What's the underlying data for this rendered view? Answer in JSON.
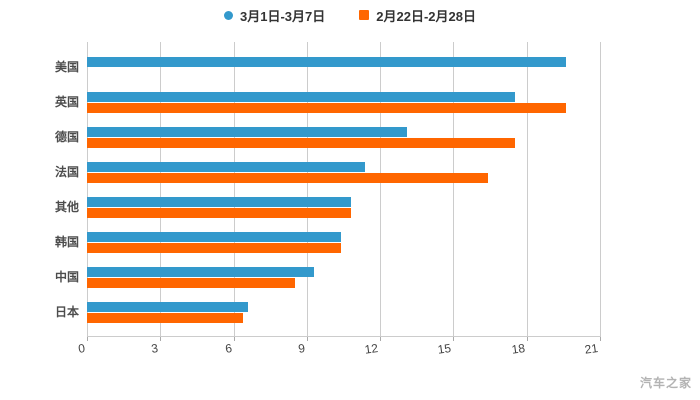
{
  "chart_data": {
    "type": "bar",
    "orientation": "horizontal",
    "title": "",
    "categories": [
      "美国",
      "英国",
      "德国",
      "法国",
      "其他",
      "韩国",
      "中国",
      "日本"
    ],
    "series": [
      {
        "name": "3月1日-3月7日",
        "marker": "circle",
        "color": "#3399cc",
        "values": [
          19.6,
          17.5,
          13.1,
          11.4,
          10.8,
          10.4,
          9.3,
          6.6
        ]
      },
      {
        "name": "2月22日-2月28日",
        "marker": "square",
        "color": "#ff6600",
        "values": [
          null,
          19.6,
          17.5,
          16.4,
          10.8,
          10.4,
          8.5,
          6.4
        ]
      }
    ],
    "xlim": [
      0,
      21
    ],
    "xticks": [
      0,
      3,
      6,
      9,
      12,
      15,
      18,
      21
    ],
    "xlabel": "",
    "ylabel": "",
    "grid": true,
    "legend_position": "top"
  },
  "watermark": "汽车之家",
  "colors": {
    "series1": "#3399cc",
    "series2": "#ff6600",
    "grid": "#cccccc",
    "tick": "#aaaaaa",
    "tick_text": "#444444",
    "axis_text": "#4d4d4d",
    "legend_text": "#333333",
    "watermark": "#b3b3b3",
    "background": "#ffffff"
  }
}
